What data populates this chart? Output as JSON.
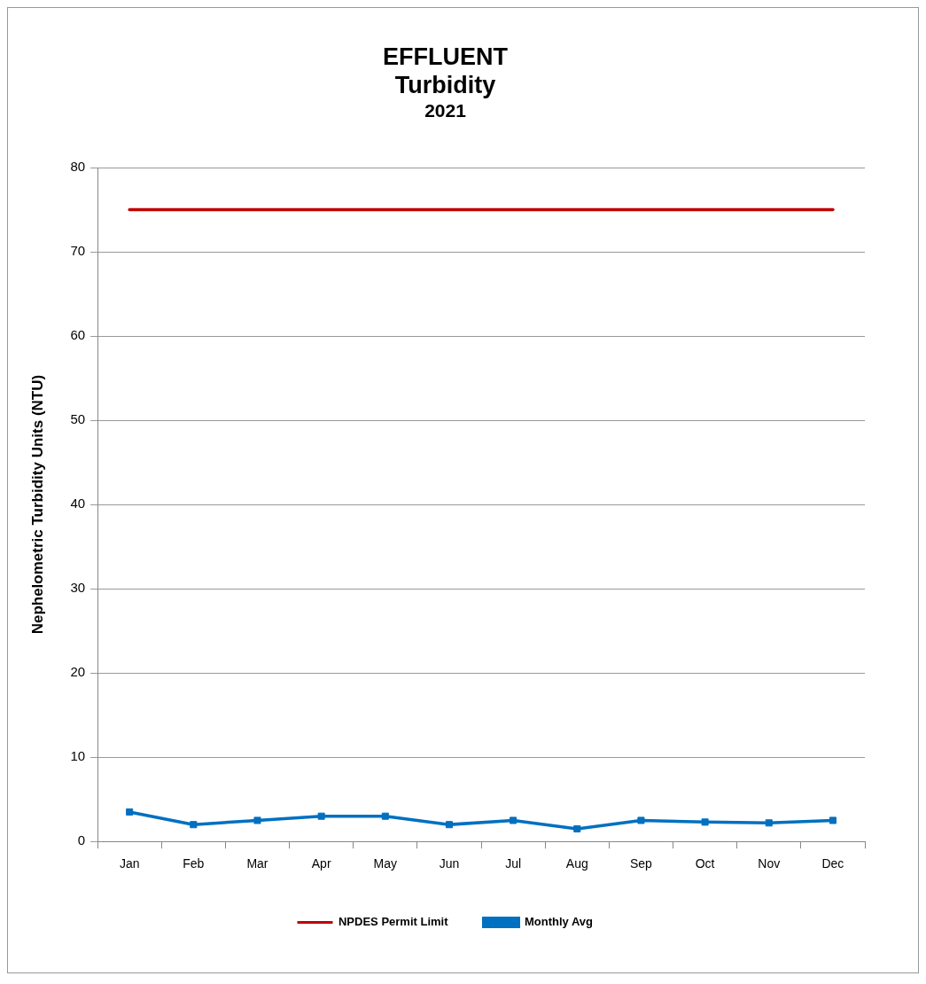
{
  "chart_data": {
    "type": "line",
    "title": "EFFLUENT Turbidity",
    "subtitle": "2021",
    "ylabel": "Nephelometric Turbidity Units (NTU)",
    "categories": [
      "Jan",
      "Feb",
      "Mar",
      "Apr",
      "May",
      "Jun",
      "Jul",
      "Aug",
      "Sep",
      "Oct",
      "Nov",
      "Dec"
    ],
    "series": [
      {
        "name": "NPDES Permit Limit",
        "color": "#c00000",
        "values": [
          75,
          75,
          75,
          75,
          75,
          75,
          75,
          75,
          75,
          75,
          75,
          75
        ],
        "marker": "none"
      },
      {
        "name": "Monthly Avg",
        "color": "#0070c0",
        "values": [
          3.5,
          2,
          2.5,
          3,
          3,
          2,
          2.5,
          1.5,
          2.5,
          2.3,
          2.2,
          2.5
        ],
        "marker": "square"
      }
    ],
    "ylim": [
      0,
      80
    ],
    "yticks": [
      0,
      10,
      20,
      30,
      40,
      50,
      60,
      70,
      80
    ],
    "grid": "y",
    "legend": "bottom"
  }
}
